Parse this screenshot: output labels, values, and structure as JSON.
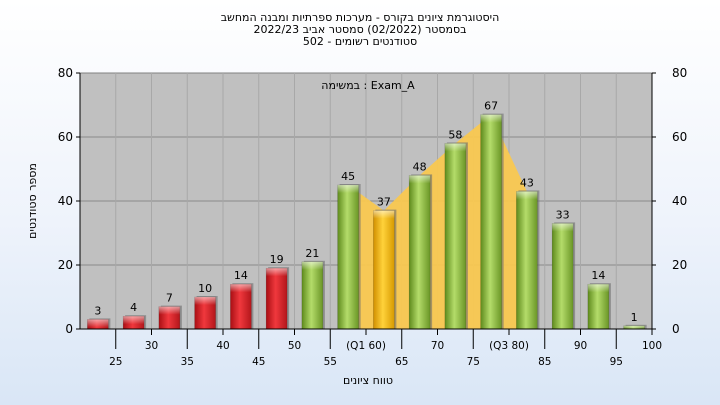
{
  "chart_data": {
    "type": "bar",
    "title_lines": [
      "היסטוגרמת ציונים בקורס - מערכות ספרתיות ומבנה המחשב",
      "בסמסטר  (02/2022)  סמסטר אביב 2022/23",
      "סטודנטים רשומים - 502"
    ],
    "annotation": "במשימה : Exam_A",
    "ylabel": "מספר סטודנטים",
    "xlabel": "טווח ציונים",
    "ylim": [
      0,
      80
    ],
    "yticks": [
      0,
      20,
      40,
      60,
      80
    ],
    "grid": true,
    "categories": [
      "25",
      "30",
      "35",
      "40",
      "45",
      "50",
      "55",
      "(Q1 60)",
      "65",
      "70",
      "75",
      "(Q3 80)",
      "85",
      "90",
      "95",
      "100"
    ],
    "values": [
      3,
      4,
      7,
      10,
      14,
      19,
      21,
      45,
      37,
      48,
      58,
      67,
      43,
      33,
      14,
      1
    ],
    "value_labels": [
      "3",
      "4",
      "7",
      "10",
      "14",
      "19",
      "21",
      "45",
      "37",
      "48",
      "58",
      "67",
      "43",
      "33",
      "14",
      "1"
    ],
    "bar_groups": [
      "red",
      "red",
      "red",
      "red",
      "red",
      "red",
      "green",
      "green",
      "orange",
      "green",
      "green",
      "green",
      "green",
      "green",
      "green",
      "green"
    ],
    "colors": {
      "red": "#e8262c",
      "green": "#8fbf3a",
      "orange": "#f5b800",
      "band": "#f9c850",
      "plot_bg": "#c0c0c0"
    }
  }
}
